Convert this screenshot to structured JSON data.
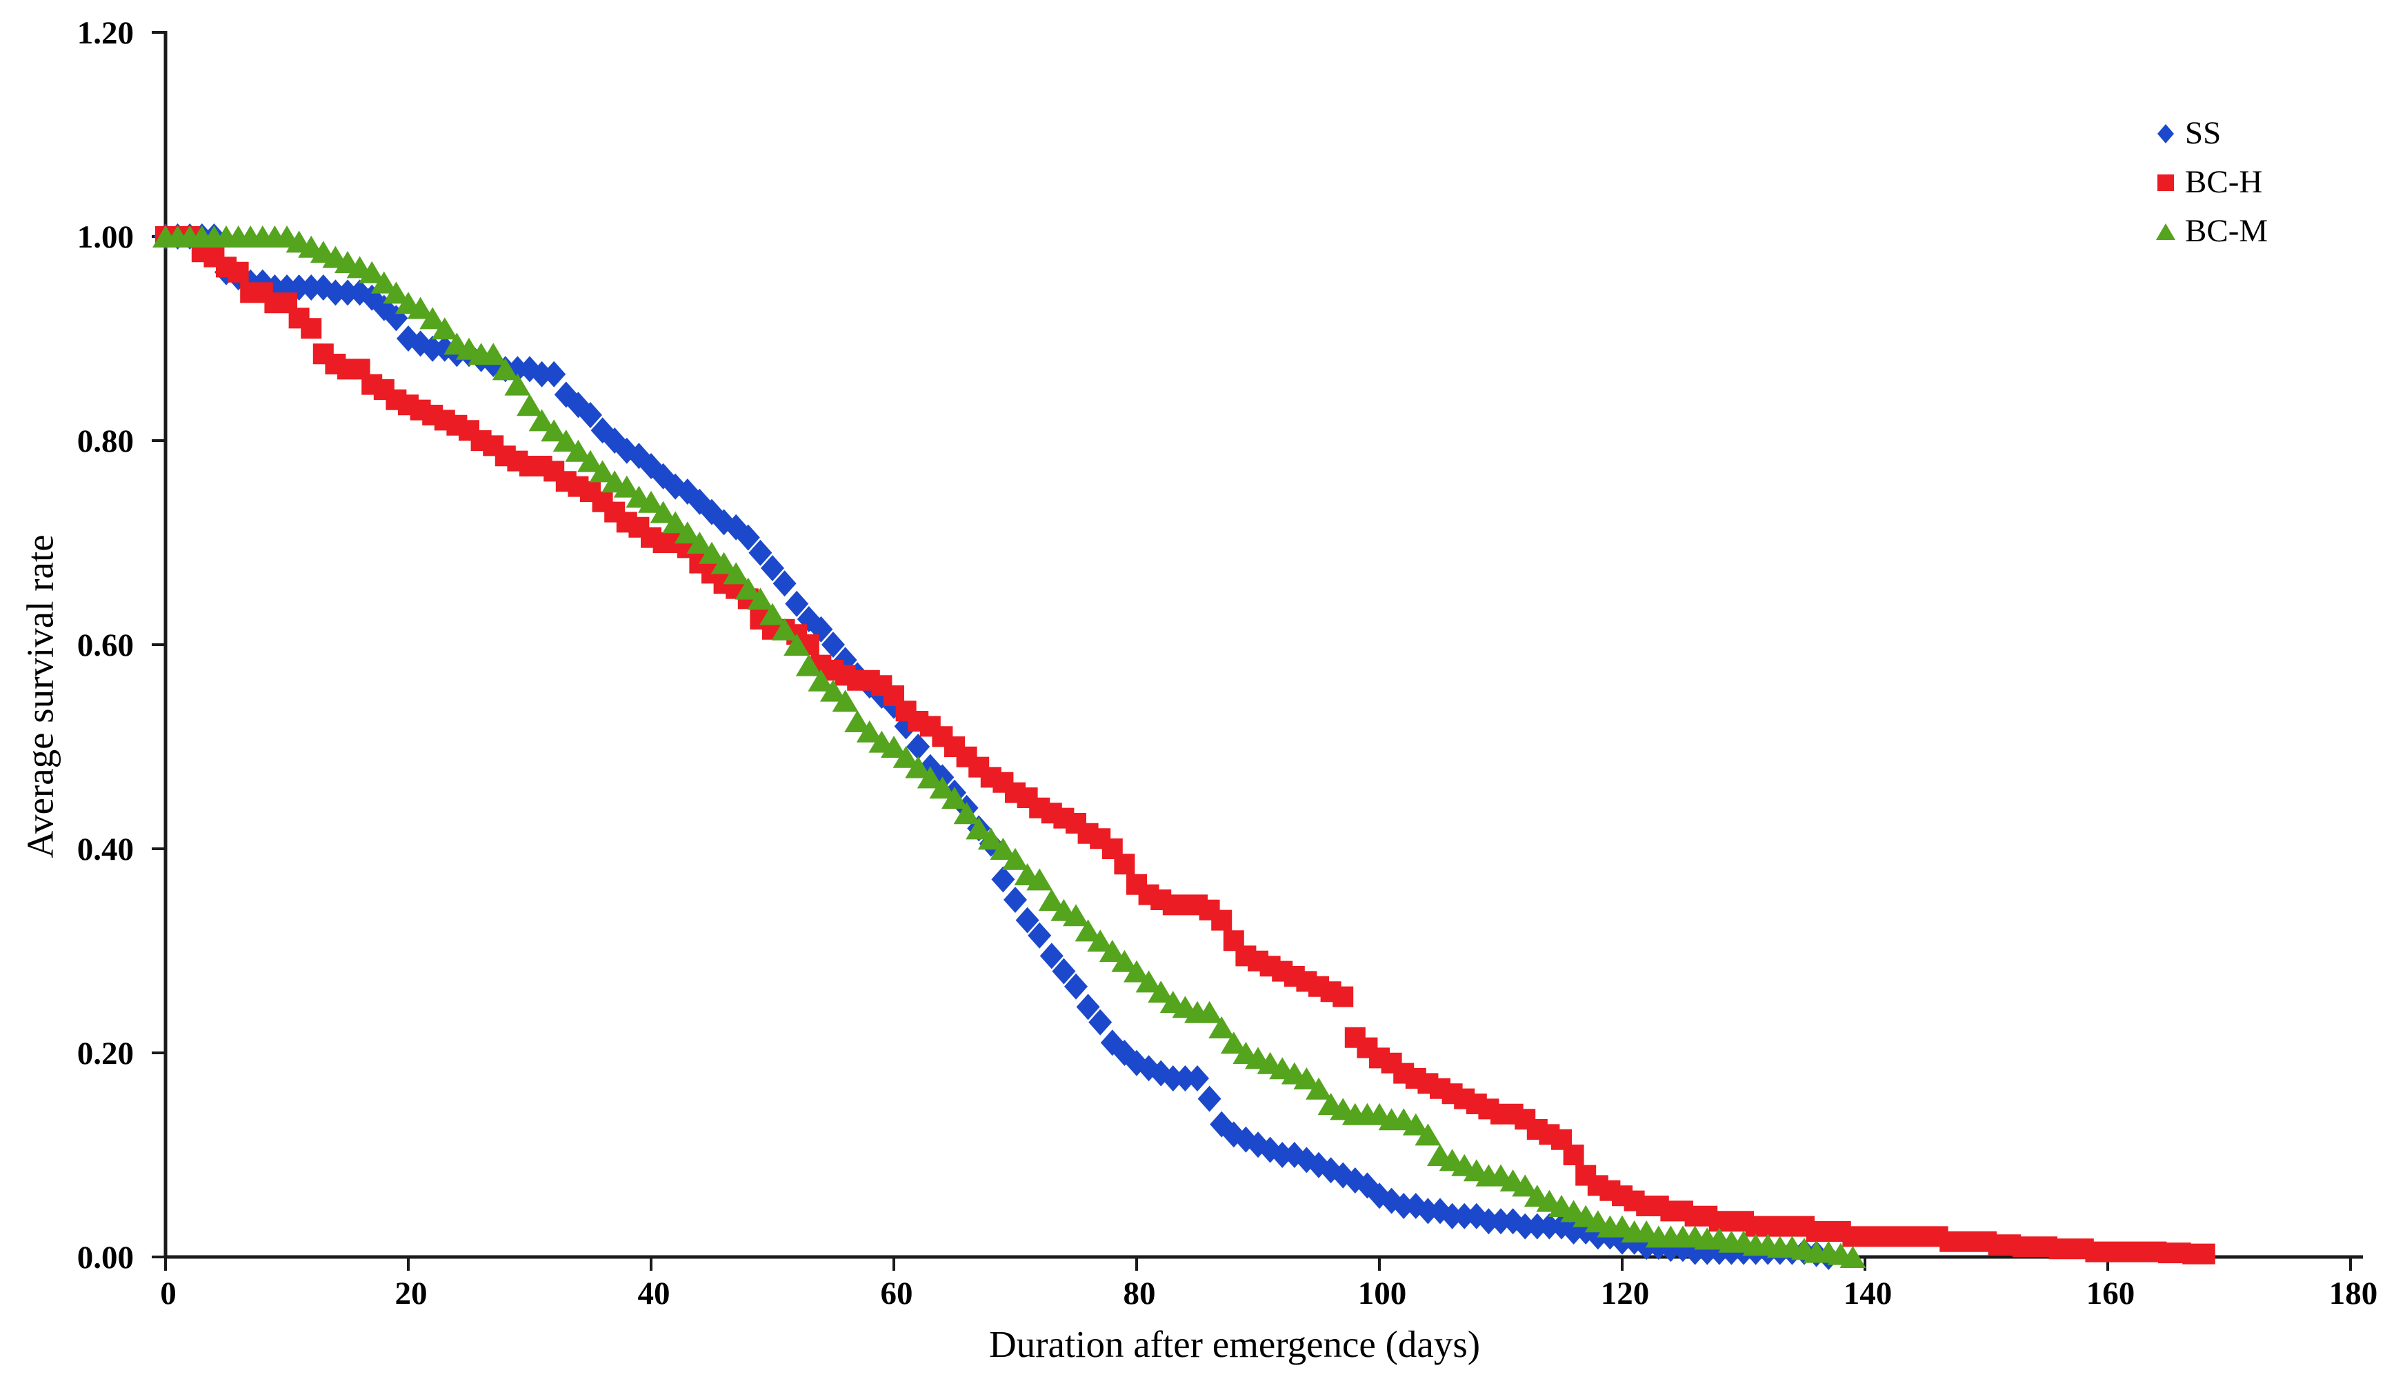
{
  "figure": {
    "type": "survival-curve-scatter-plot",
    "background": "#ffffff",
    "axis_color": "#1a1a1a"
  },
  "chart_data": {
    "type": "scatter",
    "title": "",
    "xlabel": "Duration after emergence (days)",
    "ylabel": "Average survival rate",
    "xlim": [
      0,
      180
    ],
    "ylim": [
      0.0,
      1.2
    ],
    "grid": false,
    "legend_position": "top-right",
    "x_ticks": {
      "values": [
        0,
        20,
        40,
        60,
        80,
        100,
        120,
        140,
        160,
        180
      ],
      "labels": [
        "0",
        "20",
        "40",
        "60",
        "80",
        "100",
        "120",
        "140",
        "160",
        "180"
      ]
    },
    "y_ticks": {
      "values": [
        0.0,
        0.2,
        0.4,
        0.6,
        0.8,
        1.0,
        1.2
      ],
      "labels": [
        "0.00",
        "0.20",
        "0.40",
        "0.60",
        "0.80",
        "1.00",
        "1.20"
      ]
    },
    "x_unit": "days",
    "x_step": 1,
    "series": [
      {
        "name": "SS",
        "marker": "diamond",
        "color": "#1c49cb",
        "x_start": 0,
        "values": [
          1.0,
          1.0,
          1.0,
          1.0,
          1.0,
          0.965,
          0.96,
          0.955,
          0.955,
          0.95,
          0.95,
          0.95,
          0.95,
          0.95,
          0.945,
          0.945,
          0.945,
          0.94,
          0.93,
          0.92,
          0.9,
          0.895,
          0.89,
          0.89,
          0.885,
          0.885,
          0.88,
          0.875,
          0.87,
          0.87,
          0.87,
          0.865,
          0.865,
          0.845,
          0.835,
          0.825,
          0.81,
          0.8,
          0.79,
          0.785,
          0.775,
          0.765,
          0.755,
          0.75,
          0.74,
          0.73,
          0.72,
          0.715,
          0.705,
          0.69,
          0.675,
          0.66,
          0.64,
          0.625,
          0.615,
          0.6,
          0.585,
          0.57,
          0.56,
          0.55,
          0.54,
          0.52,
          0.5,
          0.48,
          0.47,
          0.455,
          0.44,
          0.42,
          0.405,
          0.37,
          0.35,
          0.33,
          0.315,
          0.295,
          0.28,
          0.265,
          0.245,
          0.23,
          0.21,
          0.2,
          0.19,
          0.185,
          0.18,
          0.175,
          0.175,
          0.175,
          0.155,
          0.13,
          0.12,
          0.115,
          0.11,
          0.105,
          0.1,
          0.1,
          0.095,
          0.09,
          0.085,
          0.08,
          0.075,
          0.07,
          0.06,
          0.055,
          0.05,
          0.05,
          0.045,
          0.045,
          0.04,
          0.04,
          0.04,
          0.035,
          0.035,
          0.035,
          0.03,
          0.03,
          0.03,
          0.03,
          0.025,
          0.025,
          0.02,
          0.02,
          0.015,
          0.015,
          0.01,
          0.01,
          0.008,
          0.008,
          0.005,
          0.005,
          0.005,
          0.005,
          0.005,
          0.005,
          0.005,
          0.005,
          0.005,
          0.005,
          0.003,
          0.0
        ]
      },
      {
        "name": "BC-H",
        "marker": "square",
        "color": "#eb1c23",
        "x_start": 0,
        "values": [
          1.0,
          1.0,
          1.0,
          0.985,
          0.98,
          0.97,
          0.965,
          0.945,
          0.945,
          0.935,
          0.935,
          0.92,
          0.91,
          0.885,
          0.875,
          0.87,
          0.87,
          0.855,
          0.85,
          0.84,
          0.835,
          0.83,
          0.825,
          0.82,
          0.815,
          0.81,
          0.8,
          0.795,
          0.785,
          0.78,
          0.775,
          0.775,
          0.77,
          0.76,
          0.755,
          0.75,
          0.74,
          0.73,
          0.72,
          0.715,
          0.705,
          0.7,
          0.7,
          0.695,
          0.68,
          0.67,
          0.66,
          0.655,
          0.645,
          0.625,
          0.615,
          0.615,
          0.61,
          0.6,
          0.58,
          0.575,
          0.57,
          0.565,
          0.565,
          0.56,
          0.55,
          0.535,
          0.525,
          0.52,
          0.51,
          0.5,
          0.49,
          0.48,
          0.47,
          0.465,
          0.455,
          0.45,
          0.44,
          0.435,
          0.43,
          0.425,
          0.415,
          0.41,
          0.4,
          0.385,
          0.365,
          0.355,
          0.35,
          0.345,
          0.345,
          0.345,
          0.34,
          0.33,
          0.31,
          0.295,
          0.29,
          0.285,
          0.28,
          0.275,
          0.27,
          0.265,
          0.26,
          0.255,
          0.215,
          0.205,
          0.195,
          0.19,
          0.18,
          0.175,
          0.17,
          0.165,
          0.16,
          0.155,
          0.15,
          0.145,
          0.14,
          0.14,
          0.135,
          0.125,
          0.12,
          0.115,
          0.1,
          0.08,
          0.07,
          0.065,
          0.06,
          0.055,
          0.05,
          0.05,
          0.045,
          0.045,
          0.04,
          0.04,
          0.035,
          0.035,
          0.035,
          0.03,
          0.03,
          0.03,
          0.03,
          0.03,
          0.025,
          0.025,
          0.025,
          0.02,
          0.02,
          0.02,
          0.02,
          0.02,
          0.02,
          0.02,
          0.02,
          0.015,
          0.015,
          0.015,
          0.015,
          0.012,
          0.012,
          0.01,
          0.01,
          0.01,
          0.008,
          0.008,
          0.008,
          0.005,
          0.005,
          0.005,
          0.005,
          0.005,
          0.005,
          0.004,
          0.004,
          0.003,
          0.003
        ]
      },
      {
        "name": "BC-M",
        "marker": "triangle",
        "color": "#54a41d",
        "x_start": 0,
        "values": [
          1.0,
          1.0,
          1.0,
          1.0,
          1.0,
          1.0,
          1.0,
          1.0,
          1.0,
          1.0,
          1.0,
          0.995,
          0.99,
          0.985,
          0.98,
          0.975,
          0.97,
          0.965,
          0.955,
          0.945,
          0.935,
          0.93,
          0.92,
          0.91,
          0.895,
          0.89,
          0.885,
          0.885,
          0.87,
          0.855,
          0.835,
          0.82,
          0.81,
          0.8,
          0.79,
          0.78,
          0.77,
          0.76,
          0.755,
          0.745,
          0.74,
          0.73,
          0.72,
          0.71,
          0.7,
          0.69,
          0.68,
          0.67,
          0.655,
          0.645,
          0.63,
          0.615,
          0.6,
          0.58,
          0.565,
          0.555,
          0.545,
          0.525,
          0.515,
          0.505,
          0.5,
          0.49,
          0.48,
          0.47,
          0.46,
          0.45,
          0.435,
          0.42,
          0.41,
          0.4,
          0.39,
          0.375,
          0.37,
          0.35,
          0.34,
          0.335,
          0.32,
          0.31,
          0.3,
          0.29,
          0.28,
          0.27,
          0.26,
          0.25,
          0.245,
          0.24,
          0.24,
          0.225,
          0.21,
          0.2,
          0.195,
          0.19,
          0.185,
          0.18,
          0.175,
          0.165,
          0.15,
          0.145,
          0.14,
          0.14,
          0.14,
          0.135,
          0.135,
          0.13,
          0.12,
          0.1,
          0.095,
          0.09,
          0.085,
          0.08,
          0.08,
          0.075,
          0.07,
          0.06,
          0.055,
          0.05,
          0.045,
          0.04,
          0.035,
          0.03,
          0.03,
          0.025,
          0.025,
          0.02,
          0.02,
          0.02,
          0.02,
          0.018,
          0.018,
          0.015,
          0.015,
          0.012,
          0.012,
          0.01,
          0.01,
          0.008,
          0.005,
          0.005,
          0.003,
          0.0
        ]
      }
    ]
  }
}
